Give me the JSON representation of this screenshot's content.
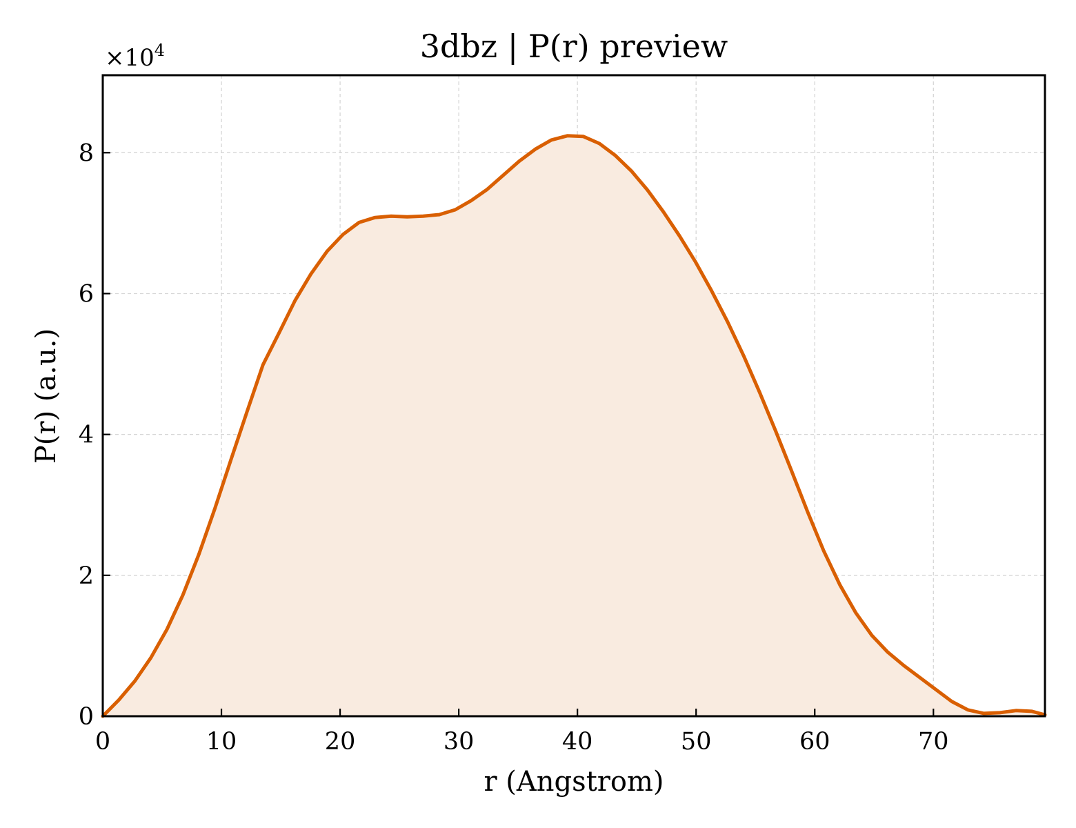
{
  "chart_data": {
    "type": "area",
    "title": "3dbz | P(r) preview",
    "xlabel": "r (Angstrom)",
    "ylabel": "P(r) (a.u.)",
    "y_offset_text": "×10",
    "y_offset_exponent": "4",
    "xlim": [
      0,
      79.4
    ],
    "ylim": [
      0,
      9.1
    ],
    "x_ticks": [
      0,
      10,
      20,
      30,
      40,
      50,
      60,
      70
    ],
    "x_tick_labels": [
      "0",
      "10",
      "20",
      "30",
      "40",
      "50",
      "60",
      "70"
    ],
    "y_ticks": [
      0,
      2,
      4,
      6,
      8
    ],
    "y_tick_labels": [
      "0",
      "2",
      "4",
      "6",
      "8"
    ],
    "grid": true,
    "colors": {
      "line": "#d95f02",
      "fill": "#f9ebe0"
    },
    "series": [
      {
        "x": [
          0,
          1.35,
          2.7,
          4.05,
          5.4,
          6.75,
          8.1,
          9.45,
          10.8,
          12.15,
          13.5,
          14.85,
          16.2,
          17.55,
          18.9,
          20.25,
          21.6,
          22.95,
          24.3,
          25.65,
          27.0,
          28.35,
          29.7,
          31.05,
          32.4,
          33.75,
          35.1,
          36.45,
          37.8,
          39.15,
          40.5,
          41.85,
          43.2,
          44.55,
          45.9,
          47.25,
          48.6,
          49.95,
          51.3,
          52.65,
          54.0,
          55.35,
          56.7,
          58.05,
          59.4,
          60.75,
          62.1,
          63.45,
          64.8,
          66.15,
          67.5,
          68.85,
          70.2,
          71.55,
          72.9,
          74.25,
          75.6,
          76.95,
          78.3,
          79.4
        ],
        "y": [
          0.0,
          0.23,
          0.5,
          0.83,
          1.23,
          1.72,
          2.3,
          2.95,
          3.64,
          4.32,
          4.99,
          5.44,
          5.9,
          6.28,
          6.6,
          6.84,
          7.01,
          7.08,
          7.1,
          7.09,
          7.1,
          7.12,
          7.19,
          7.32,
          7.48,
          7.68,
          7.88,
          8.05,
          8.18,
          8.24,
          8.23,
          8.13,
          7.96,
          7.74,
          7.47,
          7.16,
          6.82,
          6.45,
          6.04,
          5.6,
          5.12,
          4.6,
          4.05,
          3.48,
          2.9,
          2.35,
          1.87,
          1.47,
          1.15,
          0.91,
          0.72,
          0.55,
          0.38,
          0.21,
          0.09,
          0.04,
          0.05,
          0.08,
          0.07,
          0.02
        ]
      }
    ]
  }
}
